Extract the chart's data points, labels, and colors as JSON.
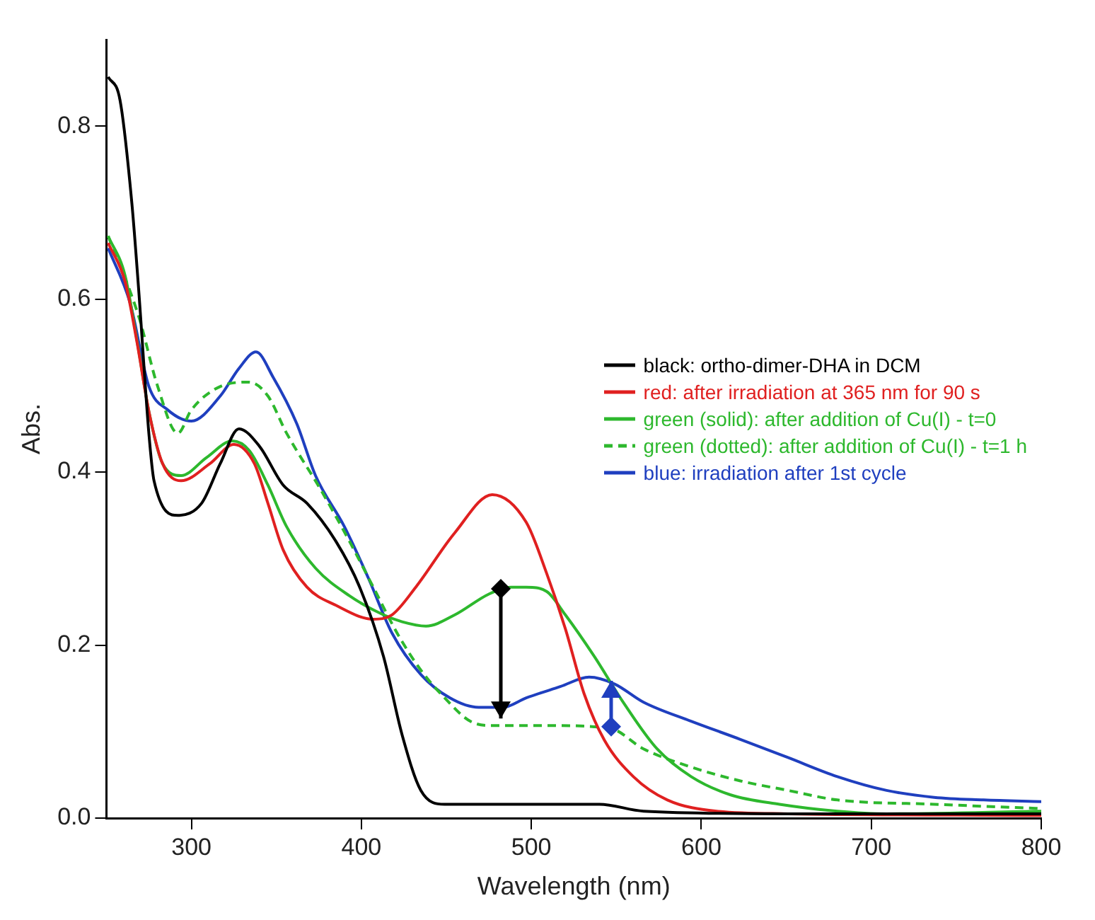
{
  "chart_data": {
    "type": "line",
    "xlabel": "Wavelength (nm)",
    "ylabel": "Abs.",
    "xlim": [
      250,
      800
    ],
    "xticks": [
      300,
      400,
      500,
      600,
      700,
      800
    ],
    "ylim": [
      0,
      0.9
    ],
    "yticks": [
      {
        "value": 0,
        "label": "0.0"
      },
      {
        "value": 0.2,
        "label": "0.2"
      },
      {
        "value": 0.4,
        "label": "0.4"
      },
      {
        "value": 0.6,
        "label": "0.6"
      },
      {
        "value": 0.8,
        "label": "0.8"
      }
    ],
    "grid": false,
    "legend": "right",
    "marker": "none",
    "series": [
      {
        "name": "black: ortho-dimer-DHA in DCM",
        "color": "#000000",
        "line_style": "solid",
        "x": [
          251,
          258,
          265,
          269,
          275,
          278,
          292,
          306,
          317,
          328,
          340,
          354,
          368,
          385,
          399,
          413,
          424,
          435,
          449,
          500,
          540,
          566,
          650,
          800
        ],
        "values": [
          0.857,
          0.83,
          0.71,
          0.61,
          0.444,
          0.39,
          0.35,
          0.364,
          0.41,
          0.45,
          0.43,
          0.385,
          0.364,
          0.32,
          0.267,
          0.187,
          0.096,
          0.032,
          0.016,
          0.016,
          0.016,
          0.008,
          0.005,
          0.005
        ]
      },
      {
        "name": "red: after irradiation at 365 nm for 90 s",
        "color": "#e02020",
        "line_style": "solid",
        "x": [
          251,
          261,
          268,
          275,
          283,
          294,
          311,
          325,
          337,
          345,
          354,
          368,
          385,
          407,
          418,
          432,
          455,
          477,
          497,
          509,
          520,
          531,
          543,
          560,
          580,
          609,
          651,
          800
        ],
        "values": [
          0.665,
          0.62,
          0.55,
          0.47,
          0.41,
          0.39,
          0.41,
          0.432,
          0.41,
          0.364,
          0.31,
          0.267,
          0.246,
          0.23,
          0.235,
          0.267,
          0.33,
          0.374,
          0.342,
          0.283,
          0.219,
          0.144,
          0.09,
          0.048,
          0.021,
          0.008,
          0.005,
          0.003
        ]
      },
      {
        "name": "green (solid): after addition of Cu(I) - t=0",
        "color": "#2db82d",
        "line_style": "solid",
        "x": [
          251,
          261,
          268,
          275,
          283,
          294,
          309,
          324,
          334,
          345,
          356,
          373,
          393,
          413,
          424,
          438,
          455,
          475,
          488,
          497,
          509,
          520,
          537,
          554,
          574,
          594,
          617,
          646,
          680,
          709,
          800
        ],
        "values": [
          0.673,
          0.627,
          0.552,
          0.47,
          0.41,
          0.396,
          0.417,
          0.436,
          0.425,
          0.385,
          0.337,
          0.289,
          0.257,
          0.235,
          0.227,
          0.222,
          0.235,
          0.259,
          0.267,
          0.267,
          0.262,
          0.235,
          0.187,
          0.134,
          0.08,
          0.048,
          0.027,
          0.016,
          0.008,
          0.005,
          0.008
        ]
      },
      {
        "name": "green (dotted): after addition of Cu(I) - t=1 h",
        "color": "#2db82d",
        "line_style": "dashed",
        "x": [
          251,
          269,
          280,
          292,
          300,
          317,
          334,
          345,
          356,
          376,
          393,
          407,
          421,
          435,
          449,
          464,
          477,
          509,
          546,
          566,
          594,
          623,
          651,
          680,
          737,
          800
        ],
        "values": [
          0.673,
          0.58,
          0.5,
          0.445,
          0.472,
          0.499,
          0.504,
          0.488,
          0.445,
          0.38,
          0.32,
          0.267,
          0.214,
          0.171,
          0.139,
          0.112,
          0.107,
          0.107,
          0.104,
          0.08,
          0.059,
          0.043,
          0.032,
          0.021,
          0.016,
          0.011
        ]
      },
      {
        "name": "blue: irradiation after 1st cycle",
        "color": "#1f3fbf",
        "line_style": "solid",
        "x": [
          251,
          264,
          275,
          286,
          300,
          317,
          328,
          338,
          348,
          362,
          373,
          390,
          404,
          418,
          435,
          452,
          469,
          483,
          497,
          517,
          534,
          549,
          566,
          594,
          623,
          651,
          680,
          709,
          737,
          766,
          800
        ],
        "values": [
          0.659,
          0.595,
          0.499,
          0.472,
          0.459,
          0.488,
          0.52,
          0.539,
          0.51,
          0.456,
          0.396,
          0.337,
          0.278,
          0.214,
          0.166,
          0.139,
          0.128,
          0.128,
          0.139,
          0.152,
          0.163,
          0.155,
          0.134,
          0.112,
          0.091,
          0.07,
          0.048,
          0.032,
          0.024,
          0.021,
          0.019
        ]
      }
    ]
  }
}
